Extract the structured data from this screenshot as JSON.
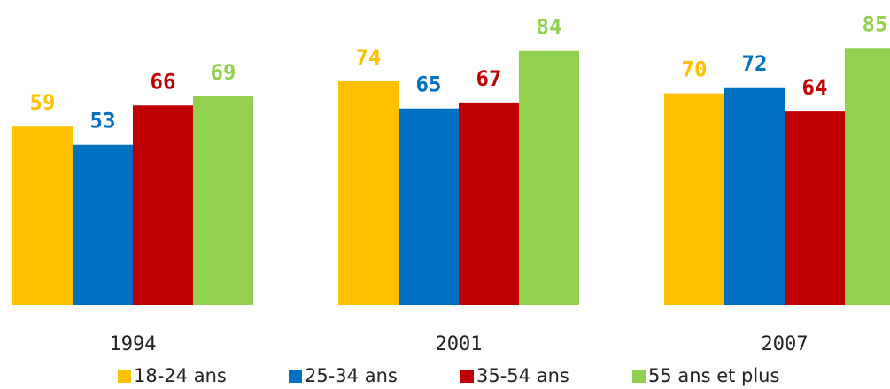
{
  "chart_data": {
    "type": "bar",
    "categories": [
      "1994",
      "2001",
      "2007"
    ],
    "series": [
      {
        "name": "18-24 ans",
        "color": "#FFC000",
        "values": [
          59,
          74,
          70
        ]
      },
      {
        "name": "25-34 ans",
        "color": "#0070C0",
        "values": [
          53,
          65,
          72
        ]
      },
      {
        "name": "35-54 ans",
        "color": "#C00000",
        "values": [
          66,
          67,
          64
        ]
      },
      {
        "name": "55 ans et plus",
        "color": "#92D050",
        "values": [
          69,
          84,
          85
        ]
      }
    ],
    "ylim": [
      0,
      100
    ]
  }
}
